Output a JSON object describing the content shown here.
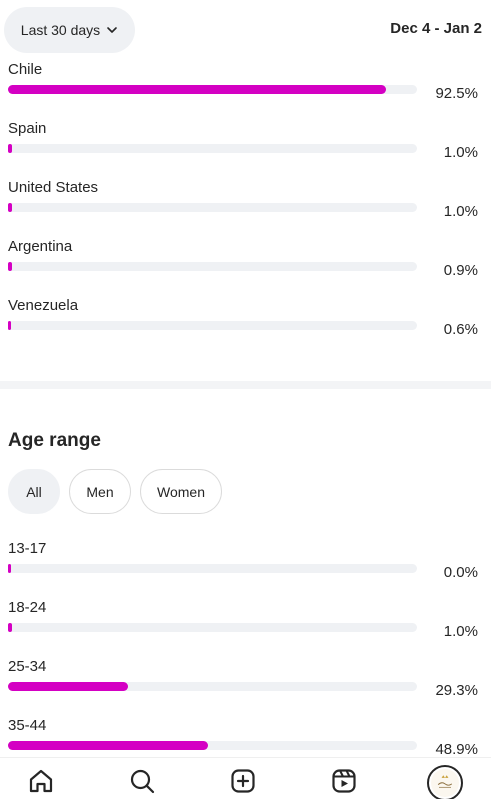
{
  "header": {
    "range_label": "Last 30 days",
    "date_range": "Dec 4 - Jan 2"
  },
  "countries": [
    {
      "name": "Chile",
      "value": 92.5,
      "label": "92.5%"
    },
    {
      "name": "Spain",
      "value": 1.0,
      "label": "1.0%"
    },
    {
      "name": "United States",
      "value": 1.0,
      "label": "1.0%"
    },
    {
      "name": "Argentina",
      "value": 0.9,
      "label": "0.9%"
    },
    {
      "name": "Venezuela",
      "value": 0.6,
      "label": "0.6%"
    }
  ],
  "age": {
    "title": "Age range",
    "filters": [
      {
        "label": "All",
        "active": true
      },
      {
        "label": "Men",
        "active": false
      },
      {
        "label": "Women",
        "active": false
      }
    ],
    "ranges": [
      {
        "name": "13-17",
        "value": 0.0,
        "label": "0.0%"
      },
      {
        "name": "18-24",
        "value": 1.0,
        "label": "1.0%"
      },
      {
        "name": "25-34",
        "value": 29.3,
        "label": "29.3%"
      },
      {
        "name": "35-44",
        "value": 48.9,
        "label": "48.9%"
      }
    ]
  },
  "colors": {
    "accent": "#d400c3",
    "track": "#eff1f4",
    "text": "#262626"
  },
  "nav": {
    "items": [
      "home-icon",
      "search-icon",
      "create-icon",
      "reels-icon",
      "profile-avatar"
    ]
  }
}
